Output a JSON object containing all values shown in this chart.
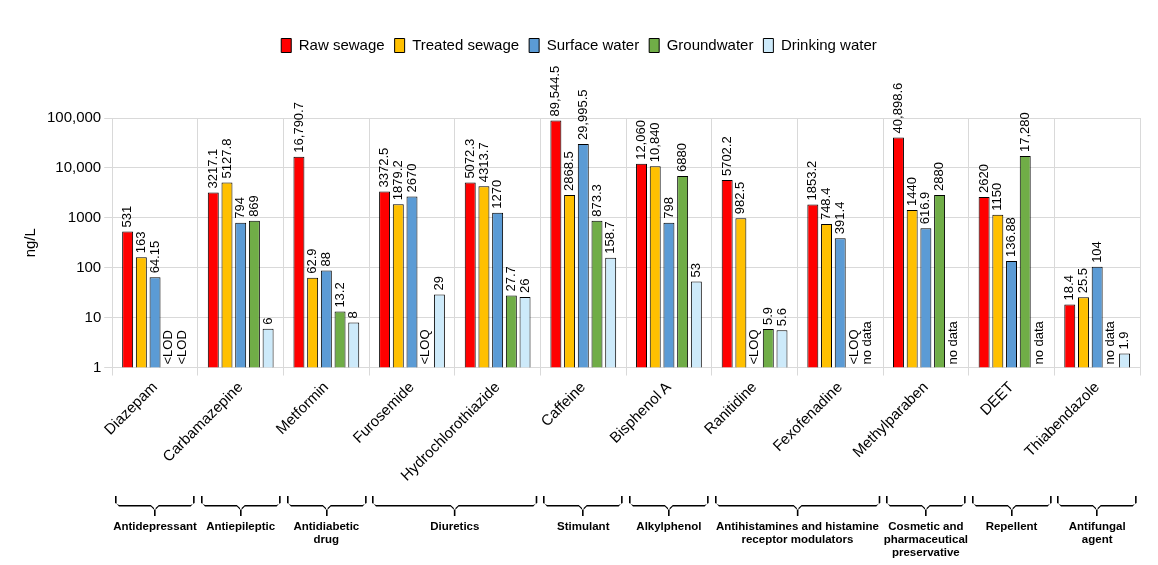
{
  "chart_data": {
    "type": "bar",
    "ylabel": "ng/L",
    "log": true,
    "ylim": [
      1,
      100000
    ],
    "yticks": [
      1,
      10,
      100,
      1000,
      {
        "value": 10000,
        "label": "10,000"
      },
      {
        "value": 100000,
        "label": "100,000"
      }
    ],
    "grid": true,
    "legend": "top",
    "categories": [
      "Diazepam",
      "Carbamazepine",
      "Metformin",
      "Furosemide",
      "Hydrochlorothiazide",
      "Caffeine",
      "Bisphenol A",
      "Ranitidine",
      "Fexofenadine",
      "Methylparaben",
      "DEET",
      "Thiabendazole"
    ],
    "series": [
      {
        "name": "Raw sewage",
        "color": "#ff0000",
        "values": [
          531,
          3217.1,
          16790.7,
          3372.5,
          5072.3,
          89544.5,
          12060,
          5702.2,
          1853.2,
          40898.6,
          2620,
          18.4
        ],
        "value_labels": [
          "531",
          "3217.1",
          "16,790.7",
          "3372.5",
          "5072.3",
          "89,544.5",
          "12,060",
          "5702.2",
          "1853.2",
          "40,898.6",
          "2620",
          "18.4"
        ]
      },
      {
        "name": "Treated sewage",
        "color": "#ffc000",
        "values": [
          163,
          5127.8,
          62.9,
          1879.2,
          4313.7,
          2868.5,
          10840,
          982.5,
          748.4,
          1440,
          1150,
          25.5
        ],
        "value_labels": [
          "163",
          "5127.8",
          "62.9",
          "1879.2",
          "4313.7",
          "2868.5",
          "10,840",
          "982.5",
          "748.4",
          "1440",
          "1150",
          "25.5"
        ]
      },
      {
        "name": "Surface water",
        "color": "#5b9bd5",
        "values": [
          64.15,
          794,
          88,
          2670,
          1270,
          29995.5,
          798,
          null,
          391.4,
          616.9,
          136.88,
          104
        ],
        "value_labels": [
          "64.15",
          "794",
          "88",
          "2670",
          "1270",
          "29,995.5",
          "798",
          "<LOQ",
          "391.4",
          "616.9",
          "136.88",
          "104"
        ]
      },
      {
        "name": "Groundwater",
        "color": "#70ad47",
        "values": [
          null,
          869,
          13.2,
          null,
          27.7,
          873.3,
          6880,
          5.9,
          null,
          2880,
          17280,
          null
        ],
        "value_labels": [
          "<LOD",
          "869",
          "13.2",
          "<LOQ",
          "27.7",
          "873.3",
          "6880",
          "5.9",
          "<LOQ",
          "2880",
          "17,280",
          "no data"
        ]
      },
      {
        "name": "Drinking water",
        "color": "#cdeafa",
        "values": [
          null,
          6,
          8,
          29,
          26,
          158.7,
          53,
          5.6,
          null,
          null,
          null,
          1.9
        ],
        "value_labels": [
          "<LOD",
          "6",
          "8",
          "29",
          "26",
          "158.7",
          "53",
          "5.6",
          "no data",
          "no data",
          "no data",
          "1.9"
        ]
      }
    ],
    "annotations": [
      "Antidepressant",
      "Antiepileptic",
      "Antidiabetic drug",
      "Diuretics",
      "Stimulant",
      "Alkylphenol",
      "Antihistamines and histamine receptor modulators",
      "Cosmetic and pharmaceutical preservative",
      "Repellent",
      "Antifungal agent"
    ]
  }
}
